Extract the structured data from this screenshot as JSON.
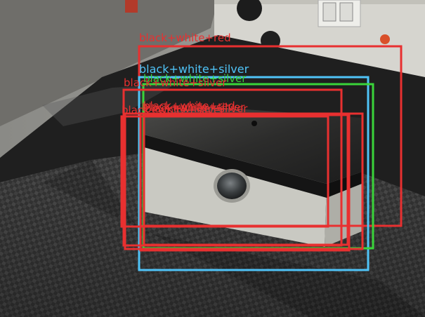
{
  "detections": [
    {
      "label": "black+white+red",
      "color": "#e83030"
    },
    {
      "label": "black+white+silver",
      "color": "#4fc3f7"
    },
    {
      "label": "black+white+silver",
      "color": "#3ad43a"
    },
    {
      "label": "black+white+silver",
      "color": "#e83030"
    },
    {
      "label": "black+white+silver",
      "color": "#e83030"
    },
    {
      "label": "black+white+silver",
      "color": "#e83030"
    },
    {
      "label": "black+white+red",
      "color": "#e83030"
    },
    {
      "label": "black+white+silver",
      "color": "#e83030"
    }
  ]
}
